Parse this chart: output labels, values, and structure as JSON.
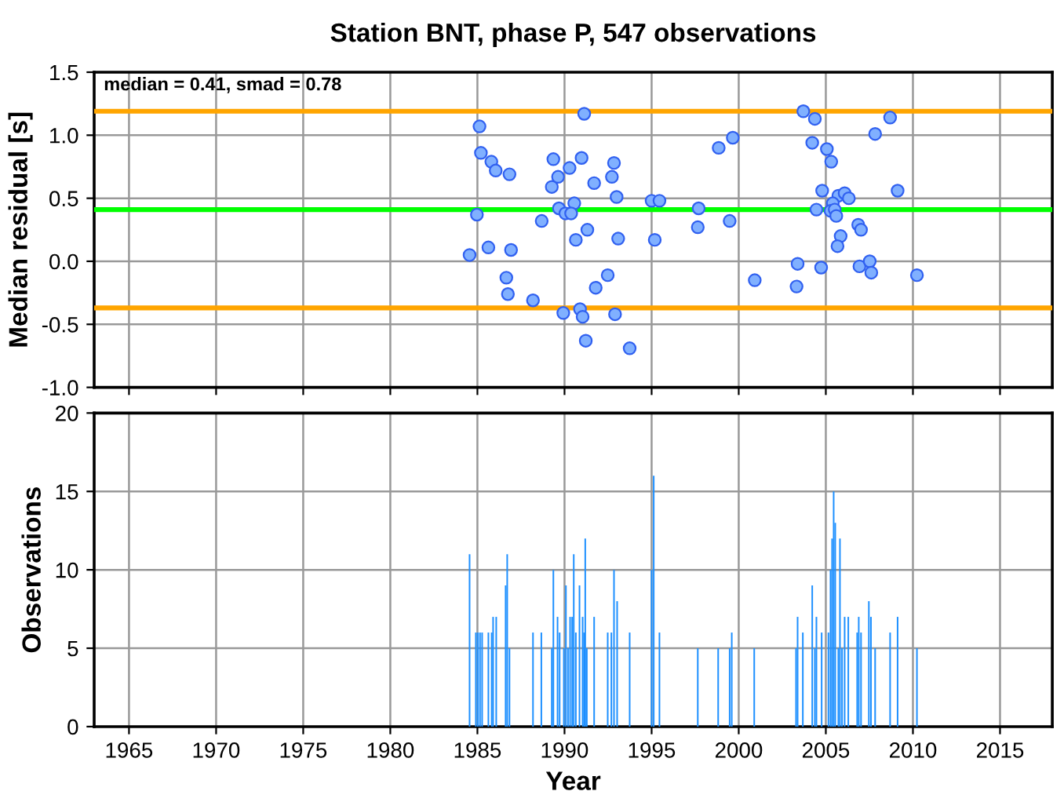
{
  "chart_data": [
    {
      "type": "scatter",
      "title": "Station BNT, phase P, 547 observations",
      "ylabel": "Median residual [s]",
      "annotations": [
        "median = 0.41, smad = 0.78"
      ],
      "xlim": [
        1963,
        2018
      ],
      "xticks": [
        1965,
        1970,
        1975,
        1980,
        1985,
        1990,
        1995,
        2000,
        2005,
        2010,
        2015
      ],
      "ylim": [
        -1.0,
        1.5
      ],
      "yticks": [
        {
          "value": -1,
          "label": "-1.0"
        },
        -0.5,
        {
          "value": 0,
          "label": "0.0"
        },
        0.5,
        {
          "value": 1,
          "label": "1.0"
        },
        1.5
      ],
      "tick_labels": "y",
      "grid": true,
      "marker": "circle",
      "ref_lines": [
        {
          "axis": "y",
          "value": 1.19,
          "color": "#ffa500"
        },
        {
          "axis": "y",
          "value": 0.41,
          "color": "#00ff00"
        },
        {
          "axis": "y",
          "value": -0.37,
          "color": "#ffa500"
        }
      ],
      "series": [
        {
          "color": "#80b0ff",
          "x": [
            1991.13,
            1985.12,
            1985.2,
            1985.8,
            1986.05,
            1986.84,
            1989.36,
            1989.63,
            1989.27,
            1990.29,
            1990.98,
            1991.7,
            1992.84,
            1992.72,
            1992.99,
            1989.68,
            1990.56,
            1990.05,
            1990.38,
            1984.97,
            1988.69,
            1990.65,
            1991.31,
            1993.08,
            1995.18,
            1995.0,
            1995.45,
            1997.7,
            1997.65,
            1999.48,
            1998.85,
            1999.66,
            2000.92,
            1985.63,
            1984.55,
            1986.93,
            1986.66,
            1986.75,
            1988.19,
            1992.48,
            1991.79,
            1989.93,
            1990.89,
            1991.04,
            1992.9,
            1991.22,
            1993.74,
            2003.71,
            2004.37,
            2008.69,
            2007.83,
            2004.22,
            2005.06,
            2005.31,
            2004.79,
            2009.12,
            2005.72,
            2006.08,
            2006.32,
            2005.4,
            2004.46,
            2005.27,
            2005.51,
            2005.6,
            2006.86,
            2007.02,
            2005.85,
            2005.67,
            2003.38,
            2004.73,
            2006.93,
            2007.52,
            2007.61,
            2010.23,
            2003.32
          ],
          "values": [
            1.17,
            1.07,
            0.86,
            0.79,
            0.72,
            0.69,
            0.81,
            0.67,
            0.59,
            0.74,
            0.82,
            0.62,
            0.78,
            0.67,
            0.51,
            0.42,
            0.46,
            0.38,
            0.38,
            0.37,
            0.32,
            0.17,
            0.25,
            0.18,
            0.17,
            0.48,
            0.48,
            0.42,
            0.27,
            0.32,
            0.9,
            0.98,
            -0.15,
            0.11,
            0.05,
            0.09,
            -0.13,
            -0.26,
            -0.31,
            -0.11,
            -0.21,
            -0.41,
            -0.38,
            -0.44,
            -0.42,
            -0.63,
            -0.69,
            1.19,
            1.13,
            1.14,
            1.01,
            0.94,
            0.89,
            0.79,
            0.56,
            0.56,
            0.52,
            0.54,
            0.5,
            0.46,
            0.41,
            0.4,
            0.41,
            0.36,
            0.29,
            0.25,
            0.2,
            0.12,
            -0.02,
            -0.05,
            -0.04,
            0.0,
            -0.09,
            -0.11,
            -0.2
          ]
        }
      ]
    },
    {
      "type": "bar",
      "xlabel": "Year",
      "ylabel": "Observations",
      "xlim": [
        1963,
        2018
      ],
      "xticks": [
        1965,
        1970,
        1975,
        1980,
        1985,
        1990,
        1995,
        2000,
        2005,
        2010,
        2015
      ],
      "ylim": [
        0,
        20
      ],
      "yticks": [
        0,
        5,
        10,
        15,
        20
      ],
      "grid": true,
      "series": [
        {
          "color": "#1e90ff",
          "x": [
            1984.55,
            1984.91,
            1985.03,
            1985.15,
            1985.27,
            1985.63,
            1985.82,
            1985.9,
            1986.08,
            1986.62,
            1986.71,
            1986.84,
            1988.19,
            1988.67,
            1989.27,
            1989.36,
            1989.6,
            1989.72,
            1989.96,
            1990.08,
            1990.2,
            1990.32,
            1990.44,
            1990.53,
            1990.65,
            1990.86,
            1991.04,
            1991.12,
            1991.19,
            1991.28,
            1991.7,
            1992.48,
            1992.69,
            1992.84,
            1993.02,
            1993.74,
            1995.0,
            1995.12,
            1995.45,
            1997.65,
            1998.82,
            1999.48,
            1999.6,
            2000.89,
            2003.29,
            2003.38,
            2003.68,
            2004.22,
            2004.37,
            2004.46,
            2004.76,
            2005.15,
            2005.27,
            2005.36,
            2005.45,
            2005.54,
            2005.72,
            2005.81,
            2005.93,
            2006.08,
            2006.29,
            2006.8,
            2006.89,
            2007.02,
            2007.47,
            2007.59,
            2007.83,
            2008.69,
            2009.12,
            2010.23
          ],
          "values": [
            11,
            6,
            6,
            6,
            6,
            6,
            6,
            7,
            7,
            9,
            11,
            5,
            6,
            6,
            5,
            10,
            7,
            6,
            5,
            9,
            5,
            7,
            7,
            11,
            6,
            9,
            7,
            6,
            12,
            5,
            7,
            6,
            6,
            10,
            8,
            6,
            10,
            16,
            6,
            5,
            5,
            5,
            6,
            5,
            5,
            7,
            6,
            9,
            5,
            7,
            6,
            6,
            10,
            12,
            15,
            13,
            5,
            12,
            5,
            7,
            7,
            6,
            7,
            6,
            8,
            7,
            5,
            6,
            7,
            5
          ]
        }
      ]
    }
  ]
}
